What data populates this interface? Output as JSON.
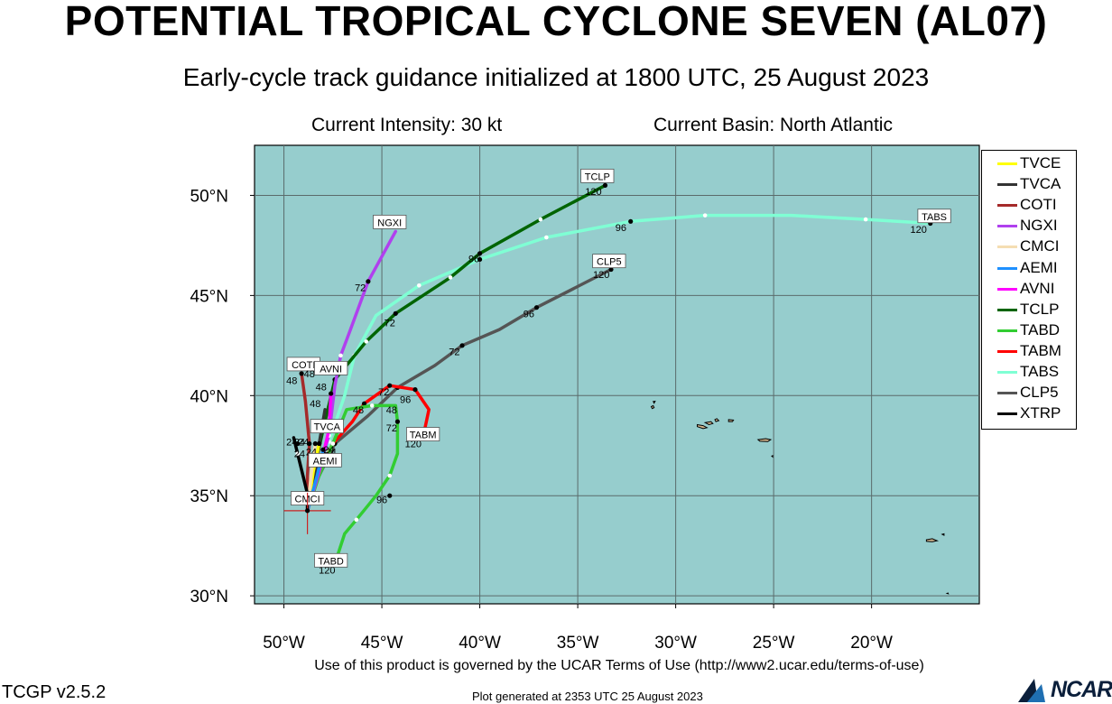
{
  "header": {
    "title": "POTENTIAL TROPICAL CYCLONE SEVEN (AL07)",
    "subtitle": "Early-cycle track guidance initialized at 1800 UTC, 25 August 2023",
    "intensity": "Current Intensity: 30 kt",
    "basin": "Current Basin: North Atlantic"
  },
  "footer": {
    "terms": "Use of this product is governed by the UCAR Terms of Use (http://www2.ucar.edu/terms-of-use)",
    "version": "TCGP v2.5.2",
    "generated": "Plot generated at 2353 UTC   25 August 2023",
    "logo": "NCAR"
  },
  "colors": {
    "ocean": "#96cdcd",
    "grid": "#5a6b6b",
    "land_outline": "#000000",
    "land_fill": "#d2b48c"
  },
  "map": {
    "lon_range": [
      -51.5,
      -14.5
    ],
    "lat_range": [
      29.6,
      52.5
    ],
    "lon_ticks": [
      -50,
      -45,
      -40,
      -35,
      -30,
      -25,
      -20
    ],
    "lat_ticks": [
      30,
      35,
      40,
      45,
      50
    ],
    "lon_tick_labels": [
      "50°W",
      "45°W",
      "40°W",
      "35°W",
      "30°W",
      "25°W",
      "20°W"
    ],
    "lat_tick_labels": [
      "30°N",
      "35°N",
      "40°N",
      "45°N",
      "50°N"
    ],
    "storm_position": [
      -48.8,
      34.25
    ]
  },
  "legend": [
    {
      "name": "TVCE",
      "color": "#ffff00"
    },
    {
      "name": "TVCA",
      "color": "#333333"
    },
    {
      "name": "COTI",
      "color": "#a52a2a"
    },
    {
      "name": "NGXI",
      "color": "#b040ee"
    },
    {
      "name": "CMCI",
      "color": "#f5deb3"
    },
    {
      "name": "AEMI",
      "color": "#1e90ff"
    },
    {
      "name": "AVNI",
      "color": "#ff00ff"
    },
    {
      "name": "TCLP",
      "color": "#006400"
    },
    {
      "name": "TABD",
      "color": "#32cd32"
    },
    {
      "name": "TABM",
      "color": "#ff0000"
    },
    {
      "name": "TABS",
      "color": "#7fffd4"
    },
    {
      "name": "CLP5",
      "color": "#555555"
    },
    {
      "name": "XTRP",
      "color": "#000000"
    }
  ],
  "tracks": [
    {
      "name": "TABS",
      "color": "#7fffd4",
      "label": "TABS",
      "label_at": [
        -16.8,
        48.95
      ],
      "end_hour": "120",
      "points": [
        [
          -48.8,
          34.25
        ],
        [
          -48.4,
          35.8
        ],
        [
          -47.7,
          37.7
        ],
        [
          -46.9,
          40.0
        ],
        [
          -46.4,
          42.0
        ],
        [
          -45.3,
          44.0
        ],
        [
          -43.1,
          45.5
        ],
        [
          -40.0,
          46.8
        ],
        [
          -36.6,
          47.9
        ],
        [
          -32.3,
          48.7
        ],
        [
          -28.5,
          49.0
        ],
        [
          -24.1,
          49.0
        ],
        [
          -20.3,
          48.8
        ],
        [
          -17.0,
          48.6
        ]
      ],
      "marks": [
        [
          -40.0,
          46.8
        ],
        [
          -32.3,
          48.7
        ],
        [
          -17.0,
          48.6
        ]
      ],
      "hour_labels": [
        {
          "t": "96",
          "at": [
            -32.8,
            48.4
          ]
        },
        {
          "t": "120",
          "at": [
            -17.6,
            48.3
          ]
        }
      ]
    },
    {
      "name": "TCLP",
      "color": "#006400",
      "label": "TCLP",
      "label_at": [
        -34.0,
        50.95
      ],
      "end_hour": "120",
      "points": [
        [
          -48.8,
          34.25
        ],
        [
          -48.5,
          36.1
        ],
        [
          -48.0,
          38.3
        ],
        [
          -47.4,
          40.8
        ],
        [
          -45.8,
          42.7
        ],
        [
          -44.3,
          44.1
        ],
        [
          -41.5,
          45.9
        ],
        [
          -40.0,
          47.1
        ],
        [
          -36.9,
          48.8
        ],
        [
          -33.6,
          50.5
        ]
      ],
      "marks": [
        [
          -47.4,
          40.8
        ],
        [
          -44.3,
          44.1
        ],
        [
          -40.0,
          47.1
        ],
        [
          -33.6,
          50.5
        ]
      ],
      "hour_labels": [
        {
          "t": "72",
          "at": [
            -44.6,
            43.65
          ]
        },
        {
          "t": "96",
          "at": [
            -40.3,
            46.85
          ]
        },
        {
          "t": "120",
          "at": [
            -34.2,
            50.2
          ]
        }
      ]
    },
    {
      "name": "CLP5",
      "color": "#555555",
      "label": "CLP5",
      "label_at": [
        -33.4,
        46.7
      ],
      "end_hour": "120",
      "points": [
        [
          -48.8,
          34.25
        ],
        [
          -48.3,
          35.8
        ],
        [
          -47.4,
          37.6
        ],
        [
          -45.7,
          39.0
        ],
        [
          -44.2,
          40.4
        ],
        [
          -42.3,
          41.5
        ],
        [
          -40.9,
          42.5
        ],
        [
          -39.0,
          43.3
        ],
        [
          -37.1,
          44.4
        ],
        [
          -35.1,
          45.4
        ],
        [
          -33.3,
          46.3
        ]
      ],
      "marks": [
        [
          -47.4,
          37.6
        ],
        [
          -44.2,
          40.4
        ],
        [
          -40.9,
          42.5
        ],
        [
          -37.1,
          44.4
        ],
        [
          -33.3,
          46.3
        ]
      ],
      "hour_labels": [
        {
          "t": "24",
          "at": [
            -47.7,
            37.3
          ]
        },
        {
          "t": "72",
          "at": [
            -41.3,
            42.2
          ]
        },
        {
          "t": "96",
          "at": [
            -37.5,
            44.1
          ]
        },
        {
          "t": "120",
          "at": [
            -33.8,
            46.05
          ]
        }
      ]
    },
    {
      "name": "TABM",
      "color": "#ff0000",
      "label": "TABM",
      "label_at": [
        -42.9,
        38.05
      ],
      "end_hour": "120",
      "points": [
        [
          -48.8,
          34.25
        ],
        [
          -48.3,
          36.0
        ],
        [
          -47.5,
          37.6
        ],
        [
          -46.5,
          38.7
        ],
        [
          -45.9,
          39.6
        ],
        [
          -44.6,
          40.5
        ],
        [
          -43.3,
          40.3
        ],
        [
          -42.6,
          39.3
        ],
        [
          -42.9,
          37.9
        ]
      ],
      "marks": [
        [
          -45.9,
          39.6
        ],
        [
          -44.6,
          40.5
        ],
        [
          -43.3,
          40.3
        ],
        [
          -42.9,
          37.9
        ]
      ],
      "hour_labels": [
        {
          "t": "48",
          "at": [
            -46.2,
            39.3
          ]
        },
        {
          "t": "72",
          "at": [
            -44.9,
            40.2
          ]
        },
        {
          "t": "96",
          "at": [
            -43.8,
            39.8
          ]
        },
        {
          "t": "120",
          "at": [
            -43.4,
            37.6
          ]
        }
      ]
    },
    {
      "name": "TABD",
      "color": "#32cd32",
      "label": "TABD",
      "label_at": [
        -47.6,
        31.75
      ],
      "end_hour": "120",
      "points": [
        [
          -48.8,
          34.25
        ],
        [
          -48.2,
          36.0
        ],
        [
          -47.5,
          37.6
        ],
        [
          -46.8,
          39.3
        ],
        [
          -45.5,
          39.5
        ],
        [
          -44.3,
          39.5
        ],
        [
          -44.2,
          38.7
        ],
        [
          -44.2,
          37.1
        ],
        [
          -44.6,
          36.0
        ],
        [
          -45.3,
          35.0
        ],
        [
          -46.3,
          33.8
        ],
        [
          -46.9,
          33.1
        ],
        [
          -47.4,
          31.6
        ]
      ],
      "marks": [
        [
          -44.2,
          38.7
        ],
        [
          -44.6,
          35.0
        ],
        [
          -47.4,
          31.6
        ]
      ],
      "hour_labels": [
        {
          "t": "48",
          "at": [
            -44.5,
            39.3
          ]
        },
        {
          "t": "72",
          "at": [
            -44.5,
            38.4
          ]
        },
        {
          "t": "96",
          "at": [
            -45.0,
            34.8
          ]
        },
        {
          "t": "120",
          "at": [
            -47.8,
            31.3
          ]
        }
      ]
    },
    {
      "name": "NGXI",
      "color": "#b040ee",
      "label": "NGXI",
      "label_at": [
        -44.6,
        48.65
      ],
      "end_hour": "",
      "points": [
        [
          -48.8,
          34.25
        ],
        [
          -48.3,
          36.1
        ],
        [
          -47.7,
          38.0
        ],
        [
          -47.4,
          40.5
        ],
        [
          -47.1,
          42.0
        ],
        [
          -46.6,
          43.3
        ],
        [
          -45.7,
          45.7
        ],
        [
          -44.3,
          48.2
        ]
      ],
      "marks": [
        [
          -45.7,
          45.7
        ]
      ],
      "hour_labels": [
        {
          "t": "72",
          "at": [
            -46.1,
            45.4
          ]
        }
      ]
    },
    {
      "name": "COTI",
      "color": "#a52a2a",
      "label": "COTI",
      "label_at": [
        -49.0,
        41.55
      ],
      "end_hour": "",
      "points": [
        [
          -48.8,
          34.25
        ],
        [
          -48.8,
          36.0
        ],
        [
          -48.7,
          37.6
        ],
        [
          -48.9,
          39.7
        ],
        [
          -49.1,
          41.1
        ]
      ],
      "marks": [
        [
          -48.7,
          37.6
        ],
        [
          -49.1,
          41.1
        ]
      ],
      "hour_labels": [
        {
          "t": "48",
          "at": [
            -49.6,
            40.75
          ]
        }
      ]
    },
    {
      "name": "AVNI",
      "color": "#ff00ff",
      "label": "AVNI",
      "label_at": [
        -47.6,
        41.35
      ],
      "end_hour": "",
      "points": [
        [
          -48.8,
          34.25
        ],
        [
          -48.2,
          36.2
        ],
        [
          -47.7,
          38.3
        ],
        [
          -47.6,
          40.1
        ]
      ],
      "marks": [
        [
          -47.6,
          40.1
        ]
      ],
      "hour_labels": [
        {
          "t": "48",
          "at": [
            -48.1,
            40.45
          ]
        },
        {
          "t": "48",
          "at": [
            -48.7,
            41.1
          ]
        }
      ]
    },
    {
      "name": "TVCA",
      "color": "#333333",
      "label": "TVCA",
      "label_at": [
        -47.8,
        38.45
      ],
      "end_hour": "",
      "points": [
        [
          -48.8,
          34.25
        ],
        [
          -48.4,
          36.1
        ],
        [
          -48.2,
          37.6
        ],
        [
          -47.9,
          39.3
        ]
      ],
      "marks": [
        [
          -48.2,
          37.6
        ]
      ],
      "hour_labels": [
        {
          "t": "48",
          "at": [
            -48.4,
            39.6
          ]
        },
        {
          "t": "24",
          "at": [
            -49.0,
            37.7
          ]
        }
      ]
    },
    {
      "name": "TVCE",
      "color": "#ffff00",
      "label": "",
      "label_at": null,
      "end_hour": "",
      "points": [
        [
          -48.8,
          34.25
        ],
        [
          -48.5,
          36.2
        ],
        [
          -48.2,
          37.6
        ]
      ],
      "marks": [
        [
          -48.2,
          37.6
        ]
      ],
      "hour_labels": []
    },
    {
      "name": "AEMI",
      "color": "#1e90ff",
      "label": "AEMI",
      "label_at": [
        -47.9,
        36.75
      ],
      "end_hour": "",
      "points": [
        [
          -48.8,
          34.25
        ],
        [
          -48.3,
          36.0
        ],
        [
          -48.0,
          37.3
        ]
      ],
      "marks": [
        [
          -48.0,
          37.3
        ]
      ],
      "hour_labels": [
        {
          "t": "24",
          "at": [
            -47.6,
            37.2
          ]
        },
        {
          "t": "24",
          "at": [
            -48.6,
            37.2
          ]
        }
      ]
    },
    {
      "name": "CMCI",
      "color": "#f5deb3",
      "label": "CMCI",
      "label_at": [
        -48.8,
        34.85
      ],
      "end_hour": "",
      "points": [
        [
          -48.8,
          34.25
        ],
        [
          -48.6,
          36.1
        ],
        [
          -48.4,
          37.6
        ]
      ],
      "marks": [
        [
          -48.4,
          37.6
        ]
      ],
      "hour_labels": [
        {
          "t": "24",
          "at": [
            -49.2,
            37.1
          ]
        }
      ]
    },
    {
      "name": "XTRP",
      "color": "#000000",
      "label": "",
      "label_at": null,
      "end_hour": "",
      "points": [
        [
          -48.8,
          34.25
        ],
        [
          -48.8,
          35.1
        ],
        [
          -49.3,
          37.1
        ],
        [
          -49.5,
          37.9
        ]
      ],
      "marks": [
        [
          -49.3,
          37.6
        ]
      ],
      "hour_labels": [
        {
          "t": "24",
          "at": [
            -49.6,
            37.7
          ]
        },
        {
          "t": "24",
          "at": [
            -49.2,
            37.7
          ]
        }
      ]
    }
  ],
  "islands": [
    [
      [
        -31.25,
        39.45
      ],
      [
        -31.15,
        39.5
      ],
      [
        -31.1,
        39.4
      ],
      [
        -31.2,
        39.35
      ]
    ],
    [
      [
        -31.15,
        39.7
      ],
      [
        -31.05,
        39.72
      ],
      [
        -31.1,
        39.62
      ]
    ],
    [
      [
        -28.9,
        38.55
      ],
      [
        -28.6,
        38.5
      ],
      [
        -28.4,
        38.4
      ],
      [
        -28.6,
        38.35
      ],
      [
        -28.9,
        38.45
      ]
    ],
    [
      [
        -28.5,
        38.65
      ],
      [
        -28.2,
        38.7
      ],
      [
        -28.1,
        38.6
      ],
      [
        -28.3,
        38.55
      ]
    ],
    [
      [
        -28.0,
        38.8
      ],
      [
        -27.9,
        38.85
      ],
      [
        -27.8,
        38.75
      ],
      [
        -27.95,
        38.7
      ]
    ],
    [
      [
        -27.3,
        38.8
      ],
      [
        -27.05,
        38.78
      ],
      [
        -27.1,
        38.7
      ],
      [
        -27.3,
        38.7
      ]
    ],
    [
      [
        -25.8,
        37.8
      ],
      [
        -25.4,
        37.85
      ],
      [
        -25.15,
        37.8
      ],
      [
        -25.3,
        37.7
      ],
      [
        -25.7,
        37.72
      ]
    ],
    [
      [
        -25.1,
        36.98
      ],
      [
        -25.05,
        37.0
      ],
      [
        -25.05,
        36.94
      ]
    ],
    [
      [
        -17.2,
        32.8
      ],
      [
        -16.9,
        32.85
      ],
      [
        -16.65,
        32.75
      ],
      [
        -16.9,
        32.7
      ],
      [
        -17.2,
        32.72
      ]
    ],
    [
      [
        -16.4,
        33.07
      ],
      [
        -16.3,
        33.1
      ],
      [
        -16.3,
        33.02
      ]
    ],
    [
      [
        -16.15,
        30.12
      ],
      [
        -16.1,
        30.14
      ],
      [
        -16.08,
        30.1
      ]
    ]
  ]
}
